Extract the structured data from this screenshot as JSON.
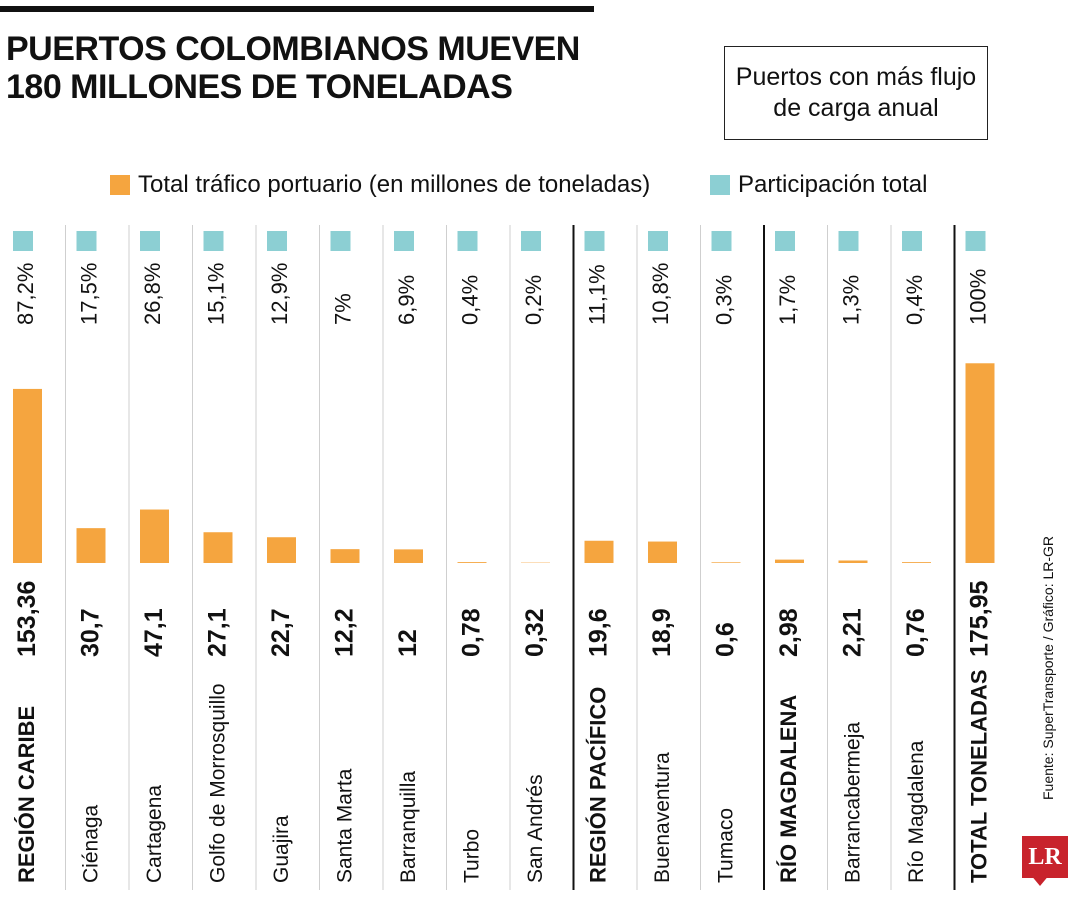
{
  "title_lines": [
    "PUERTOS COLOMBIANOS MUEVEN",
    "180 MILLONES DE TONELADAS"
  ],
  "subtitle": "Puertos con más flujo de carga anual",
  "source": "Fuente: SuperTransporte / Gráfico: LR-GR",
  "logo_text": "LR",
  "colors": {
    "bar": "#f5a53f",
    "share": "#8ccfd3",
    "text": "#111111",
    "divider": "#111111",
    "grid": "#cfcfcf"
  },
  "chart_data": {
    "type": "bar",
    "title": "PUERTOS COLOMBIANOS MUEVEN 180 MILLONES DE TONELADAS",
    "legend": [
      {
        "name": "Total tráfico portuario (en millones de toneladas)",
        "color": "#f5a53f"
      },
      {
        "name": "Participación total",
        "color": "#8ccfd3"
      }
    ],
    "categories": [
      "REGIÓN CARIBE",
      "Ciénaga",
      "Cartagena",
      "Golfo de Morrosquillo",
      "Guajira",
      "Santa Marta",
      "Barranquilla",
      "Turbo",
      "San Andrés",
      "REGIÓN PACÍFICO",
      "Buenaventura",
      "Tumaco",
      "RÍO MAGDALENA",
      "Barrancabermeja",
      "Río Magdalena",
      "TOTAL TONELADAS"
    ],
    "bold_categories": [
      "REGIÓN CARIBE",
      "REGIÓN PACÍFICO",
      "RÍO MAGDALENA",
      "TOTAL TONELADAS"
    ],
    "values": [
      153.36,
      30.7,
      47.1,
      27.1,
      22.7,
      12.2,
      12,
      0.78,
      0.32,
      19.6,
      18.9,
      0.6,
      2.98,
      2.21,
      0.76,
      175.95
    ],
    "value_labels": [
      "153,36",
      "30,7",
      "47,1",
      "27,1",
      "22,7",
      "12,2",
      "12",
      "0,78",
      "0,32",
      "19,6",
      "18,9",
      "0,6",
      "2,98",
      "2,21",
      "0,76",
      "175,95"
    ],
    "shares": [
      "87,2%",
      "17,5%",
      "26,8%",
      "15,1%",
      "12,9%",
      "7%",
      "6,9%",
      "0,4%",
      "0,2%",
      "11,1%",
      "10,8%",
      "0,3%",
      "1,7%",
      "1,3%",
      "0,4%",
      "100%"
    ],
    "ylim": [
      0,
      185
    ],
    "group_dividers_after": [
      8,
      11,
      14
    ]
  }
}
